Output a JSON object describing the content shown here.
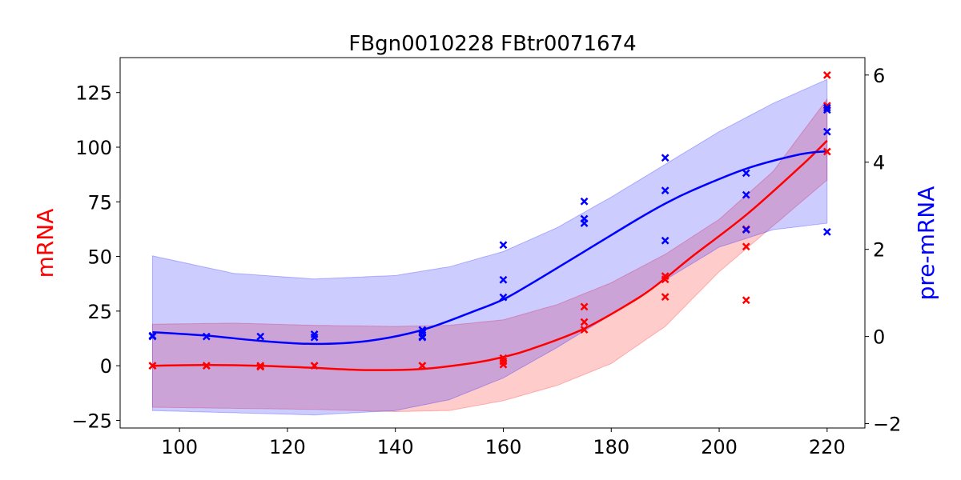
{
  "chart_data": {
    "type": "line",
    "title": "FBgn0010228 FBtr0071674",
    "xlabel": "",
    "xlim": [
      89,
      227
    ],
    "xticks": [
      100,
      120,
      140,
      160,
      180,
      200,
      220
    ],
    "y_left": {
      "label": "mRNA",
      "color": "#ff0000",
      "ylim": [
        -28.5,
        141
      ],
      "ticks": [
        -25,
        0,
        25,
        50,
        75,
        100,
        125
      ],
      "tick_labels": [
        "−25",
        "0",
        "25",
        "50",
        "75",
        "100",
        "125"
      ]
    },
    "y_right": {
      "label": "pre-mRNA",
      "color": "#0000ff",
      "ylim": [
        -2.1,
        6.4
      ],
      "ticks": [
        -2,
        0,
        2,
        4,
        6
      ],
      "tick_labels": [
        "−2",
        "0",
        "2",
        "4",
        "6"
      ]
    },
    "series": [
      {
        "axis": "left",
        "color": "#ff0000",
        "band_fill": "rgba(255,0,0,0.2)",
        "curve": {
          "x": [
            95,
            105,
            115,
            125,
            135,
            145,
            155,
            160,
            165,
            175,
            185,
            190,
            195,
            205,
            215,
            220
          ],
          "y": [
            0,
            0.3,
            0,
            -1,
            -2,
            -1.5,
            1.5,
            4,
            7.5,
            17,
            31,
            40,
            50,
            69,
            91,
            103
          ]
        },
        "band_upper": {
          "x": [
            95,
            110,
            125,
            140,
            150,
            160,
            170,
            180,
            190,
            200,
            210,
            220
          ],
          "y": [
            19,
            19.5,
            18.5,
            18,
            18.5,
            21,
            28,
            38,
            51,
            67,
            89,
            122
          ]
        },
        "band_lower": {
          "x": [
            95,
            110,
            125,
            140,
            150,
            160,
            170,
            180,
            190,
            200,
            210,
            220
          ],
          "y": [
            -19,
            -19.5,
            -20,
            -21,
            -20.5,
            -16,
            -9,
            1,
            18,
            43,
            64,
            85
          ]
        },
        "points": {
          "x": [
            95,
            95,
            105,
            105,
            115,
            115,
            125,
            125,
            145,
            145,
            160,
            160,
            160,
            175,
            175,
            175,
            190,
            190,
            190,
            205,
            205,
            205,
            220,
            220,
            220
          ],
          "y": [
            0,
            0,
            0,
            0,
            0,
            -0.5,
            0,
            0,
            0,
            0,
            3.5,
            2,
            0.5,
            27,
            20,
            16.5,
            41,
            39.5,
            31.5,
            62.5,
            54.5,
            30,
            133,
            119,
            98
          ]
        }
      },
      {
        "axis": "right",
        "color": "#0000ff",
        "band_fill": "rgba(0,0,255,0.2)",
        "curve": {
          "x": [
            95,
            105,
            115,
            125,
            135,
            145,
            155,
            160,
            165,
            175,
            185,
            190,
            195,
            205,
            215,
            220
          ],
          "y": [
            0.1,
            0.02,
            -0.1,
            -0.17,
            -0.1,
            0.15,
            0.6,
            0.85,
            1.2,
            1.95,
            2.7,
            3.05,
            3.35,
            3.85,
            4.18,
            4.25
          ]
        },
        "band_upper": {
          "x": [
            95,
            110,
            125,
            140,
            150,
            160,
            170,
            180,
            190,
            200,
            210,
            220
          ],
          "y": [
            1.85,
            1.45,
            1.32,
            1.4,
            1.6,
            1.95,
            2.5,
            3.2,
            3.95,
            4.7,
            5.35,
            5.9
          ]
        },
        "band_lower": {
          "x": [
            95,
            110,
            125,
            140,
            150,
            160,
            170,
            180,
            190,
            200,
            210,
            220
          ],
          "y": [
            -1.7,
            -1.75,
            -1.8,
            -1.7,
            -1.45,
            -0.95,
            -0.25,
            0.5,
            1.3,
            2.05,
            2.45,
            2.6
          ]
        },
        "points": {
          "x": [
            95,
            95,
            105,
            115,
            125,
            125,
            145,
            145,
            145,
            145,
            160,
            160,
            160,
            175,
            175,
            175,
            190,
            190,
            190,
            205,
            205,
            205,
            220,
            220,
            220,
            220
          ],
          "y": [
            0,
            0.02,
            0,
            0,
            0.05,
            -0.02,
            0.15,
            0.08,
            0,
            -0.02,
            2.1,
            1.3,
            0.9,
            3.1,
            2.7,
            2.6,
            4.1,
            3.35,
            2.2,
            3.75,
            3.25,
            2.45,
            5.2,
            4.7,
            2.4,
            5.25
          ]
        }
      }
    ]
  }
}
